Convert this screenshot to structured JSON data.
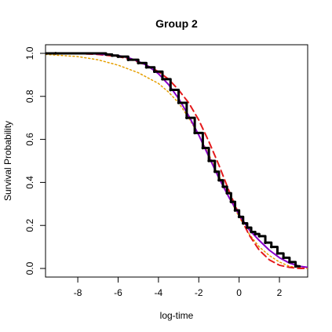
{
  "chart_data": {
    "type": "line",
    "title": "Group 2",
    "xlabel": "log-time",
    "ylabel": "Survival Probability",
    "xlim": [
      -9.6,
      3.4
    ],
    "ylim": [
      -0.04,
      1.04
    ],
    "x_ticks": [
      -8,
      -6,
      -4,
      -2,
      0,
      2
    ],
    "y_ticks": [
      0.0,
      0.2,
      0.4,
      0.6,
      0.8,
      1.0
    ],
    "x_tick_labels": [
      "-8",
      "-6",
      "-4",
      "-2",
      "0",
      "2"
    ],
    "y_tick_labels": [
      "0.0",
      "0.2",
      "0.4",
      "0.6",
      "0.8",
      "1.0"
    ],
    "grid": false,
    "series": [
      {
        "color": "#000000",
        "style": "step",
        "x": [
          -9.6,
          -9.1,
          -6.6,
          -6.3,
          -6.0,
          -5.5,
          -5.0,
          -4.6,
          -4.2,
          -3.8,
          -3.4,
          -3.0,
          -2.6,
          -2.2,
          -1.8,
          -1.5,
          -1.2,
          -1.0,
          -0.8,
          -0.6,
          -0.4,
          -0.2,
          0.0,
          0.2,
          0.4,
          0.6,
          0.8,
          1.0,
          1.3,
          1.6,
          1.9,
          2.2,
          2.5,
          2.8,
          3.0
        ],
        "y": [
          1.0,
          1.0,
          0.995,
          0.99,
          0.985,
          0.97,
          0.955,
          0.935,
          0.915,
          0.88,
          0.83,
          0.77,
          0.7,
          0.63,
          0.56,
          0.5,
          0.45,
          0.41,
          0.38,
          0.35,
          0.31,
          0.27,
          0.24,
          0.21,
          0.19,
          0.17,
          0.16,
          0.15,
          0.12,
          0.1,
          0.07,
          0.05,
          0.03,
          0.01,
          0.01
        ]
      },
      {
        "color": "#8b00c9",
        "style": "solid",
        "x": [
          -9.6,
          -8.0,
          -7.0,
          -6.0,
          -5.5,
          -5.0,
          -4.5,
          -4.0,
          -3.5,
          -3.0,
          -2.5,
          -2.0,
          -1.5,
          -1.0,
          -0.5,
          0.0,
          0.5,
          1.0,
          1.5,
          2.0,
          2.5,
          3.0,
          3.4
        ],
        "y": [
          1.0,
          0.999,
          0.997,
          0.99,
          0.98,
          0.963,
          0.94,
          0.905,
          0.855,
          0.79,
          0.71,
          0.62,
          0.52,
          0.42,
          0.33,
          0.25,
          0.18,
          0.13,
          0.085,
          0.05,
          0.025,
          0.01,
          0.005
        ]
      },
      {
        "color": "#e41a1c",
        "style": "dashed",
        "x": [
          -9.6,
          -8.0,
          -7.0,
          -6.0,
          -5.5,
          -5.0,
          -4.5,
          -4.0,
          -3.5,
          -3.0,
          -2.5,
          -2.0,
          -1.5,
          -1.0,
          -0.5,
          0.0,
          0.5,
          1.0,
          1.5,
          2.0,
          2.5,
          3.0,
          3.4
        ],
        "y": [
          1.0,
          0.999,
          0.995,
          0.985,
          0.975,
          0.96,
          0.94,
          0.915,
          0.88,
          0.83,
          0.77,
          0.69,
          0.59,
          0.48,
          0.36,
          0.25,
          0.155,
          0.085,
          0.04,
          0.015,
          0.005,
          0.0,
          0.0
        ]
      },
      {
        "color": "#e69f00",
        "style": "dotted",
        "x": [
          -9.6,
          -8.0,
          -7.0,
          -6.0,
          -5.0,
          -4.0,
          -3.5,
          -3.0,
          -2.5,
          -2.0,
          -1.5,
          -1.0,
          -0.5,
          0.0,
          0.5,
          1.0,
          1.5,
          2.0,
          2.5,
          3.0,
          3.4
        ],
        "y": [
          0.995,
          0.985,
          0.97,
          0.945,
          0.91,
          0.86,
          0.82,
          0.77,
          0.7,
          0.62,
          0.53,
          0.43,
          0.33,
          0.24,
          0.16,
          0.1,
          0.06,
          0.03,
          0.01,
          0.005,
          0.0
        ]
      }
    ]
  }
}
